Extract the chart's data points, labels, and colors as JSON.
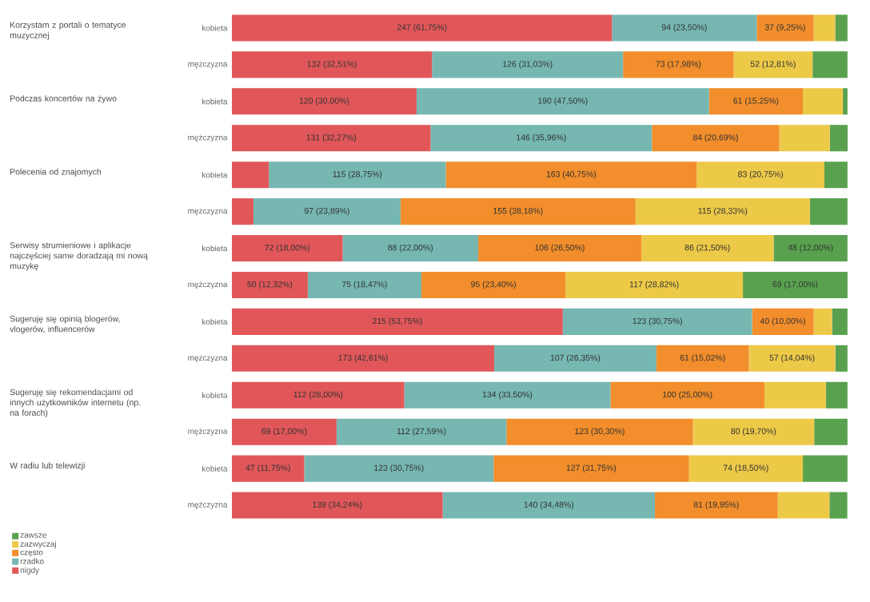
{
  "chart_data": {
    "type": "bar",
    "orientation": "horizontal",
    "stacked": true,
    "legend": "bottom left",
    "categories": [
      "kobieta",
      "mężczyzna",
      "kobieta",
      "mężczyzna",
      "kobieta",
      "mężczyzna",
      "kobieta",
      "mężczyzna",
      "kobieta",
      "mężczyzna",
      "kobieta",
      "mężczyzna",
      "kobieta",
      "mężczyzna"
    ],
    "annotations": [
      "Korzystam z portali o tematyce muzycznej",
      "Podczas koncertów na żywo",
      "Polecenia od znajomych",
      "Serwisy strumieniowe i aplikacje najczęściej same doradzają mi nową muzykę",
      "Sugeruję się opinią blogerów, vlogerów, influencerów",
      "Sugeruję się rekomendacjami od innych użytkowników internetu (np. na forach)",
      "W radiu lub telewizji"
    ],
    "series": [
      {
        "name": "nigdy",
        "color": "#e15759",
        "values": [
          61.75,
          32.51,
          30.0,
          32.27,
          6.0,
          3.5,
          18.0,
          12.32,
          53.75,
          42.61,
          28.0,
          17.0,
          11.75,
          34.24
        ],
        "value_labels": [
          "247 (61,75%)",
          "132 (32,51%)",
          "120 (30,00%)",
          "131 (32,27%)",
          null,
          null,
          "72 (18,00%)",
          "50 (12,32%)",
          "215 (53,75%)",
          "173 (42,61%)",
          "112 (28,00%)",
          "69 (17,00%)",
          "47 (11,75%)",
          "139 (34,24%)"
        ]
      },
      {
        "name": "rzadko",
        "color": "#76b7b2",
        "values": [
          23.5,
          31.03,
          47.5,
          35.96,
          28.75,
          23.89,
          22.0,
          18.47,
          30.75,
          26.35,
          33.5,
          27.59,
          30.75,
          34.48
        ],
        "value_labels": [
          "94 (23,50%)",
          "126 (31,03%)",
          "190 (47,50%)",
          "146 (35,96%)",
          "115 (28,75%)",
          "97 (23,89%)",
          "88 (22,00%)",
          "75 (18,47%)",
          "123 (30,75%)",
          "107 (26,35%)",
          "134 (33,50%)",
          "112 (27,59%)",
          "123 (30,75%)",
          "140 (34,48%)"
        ]
      },
      {
        "name": "często",
        "color": "#f28e2b",
        "values": [
          9.25,
          17.98,
          15.25,
          20.69,
          40.75,
          38.18,
          26.5,
          23.4,
          10.0,
          15.02,
          25.0,
          30.3,
          31.75,
          19.95
        ],
        "value_labels": [
          "37 (9,25%)",
          "73 (17,98%)",
          "61 (15,25%)",
          "84 (20,69%)",
          "163 (40,75%)",
          "155 (38,18%)",
          "106 (26,50%)",
          "95 (23,40%)",
          "40 (10,00%)",
          "61 (15,02%)",
          "100 (25,00%)",
          "123 (30,30%)",
          "127 (31,75%)",
          "81 (19,95%)"
        ]
      },
      {
        "name": "zazwyczaj",
        "color": "#edc948",
        "values": [
          3.5,
          12.81,
          6.5,
          8.2,
          20.75,
          28.33,
          21.5,
          28.82,
          3.0,
          14.04,
          10.0,
          19.7,
          18.5,
          8.4
        ],
        "value_labels": [
          null,
          "52 (12,81%)",
          null,
          null,
          "83 (20,75%)",
          "115 (28,33%)",
          "86 (21,50%)",
          "117 (28,82%)",
          null,
          "57 (14,04%)",
          null,
          "80 (19,70%)",
          "74 (18,50%)",
          null
        ]
      },
      {
        "name": "zawsze",
        "color": "#59a14f",
        "values": [
          2.0,
          5.67,
          0.75,
          2.9,
          3.75,
          6.1,
          12.0,
          17.0,
          2.5,
          1.98,
          3.5,
          5.41,
          7.25,
          2.9
        ],
        "value_labels": [
          null,
          null,
          null,
          null,
          null,
          null,
          "48 (12,00%)",
          "69 (17,00%)",
          null,
          null,
          null,
          null,
          null,
          null
        ]
      }
    ]
  }
}
